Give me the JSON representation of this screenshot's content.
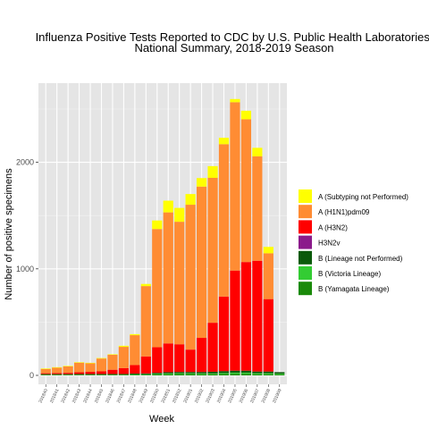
{
  "chart_data": {
    "type": "bar",
    "stacked": true,
    "title_lines": [
      "Influenza Positive Tests Reported to CDC by U.S. Public Health Laboratories,",
      "National Summary, 2018-2019 Season"
    ],
    "xlabel": "Week",
    "ylabel": "Number of positive specimens",
    "ylim": [
      0,
      2600
    ],
    "yticks": [
      0,
      1000,
      2000
    ],
    "grid": true,
    "legend_position": "right",
    "categories": [
      "201840",
      "201841",
      "201842",
      "201843",
      "201844",
      "201845",
      "201846",
      "201847",
      "201848",
      "201849",
      "201850",
      "201851",
      "201852",
      "201901",
      "201902",
      "201903",
      "201904",
      "201905",
      "201906",
      "201907",
      "201908",
      "201909"
    ],
    "series": [
      {
        "name": "B (Yamagata Lineage)",
        "color": "#1a8a0a",
        "values": [
          4,
          4,
          4,
          4,
          4,
          4,
          4,
          4,
          5,
          6,
          8,
          10,
          12,
          12,
          10,
          10,
          12,
          14,
          14,
          10,
          10,
          8
        ]
      },
      {
        "name": "B (Victoria Lineage)",
        "color": "#33cc33",
        "values": [
          3,
          3,
          3,
          3,
          3,
          3,
          3,
          3,
          4,
          4,
          6,
          8,
          8,
          8,
          8,
          8,
          10,
          12,
          12,
          10,
          10,
          8
        ]
      },
      {
        "name": "B (Lineage not Performed)",
        "color": "#0b5a0b",
        "values": [
          5,
          5,
          5,
          6,
          6,
          6,
          6,
          6,
          8,
          8,
          10,
          12,
          12,
          12,
          14,
          16,
          18,
          18,
          18,
          16,
          16,
          14
        ]
      },
      {
        "name": "H3N2v",
        "color": "#8b1a8b",
        "values": [
          0,
          0,
          0,
          0,
          0,
          0,
          0,
          0,
          0,
          0,
          0,
          0,
          0,
          0,
          0,
          0,
          0,
          0,
          0,
          0,
          0,
          0
        ]
      },
      {
        "name": "A (H3N2)",
        "color": "#ff0000",
        "values": [
          8,
          10,
          12,
          16,
          20,
          25,
          40,
          55,
          80,
          160,
          240,
          270,
          260,
          210,
          320,
          460,
          700,
          940,
          1020,
          1040,
          680,
          0
        ]
      },
      {
        "name": "A (H1N1)pdm09",
        "color": "#ff8c33",
        "values": [
          40,
          50,
          60,
          90,
          80,
          120,
          140,
          200,
          280,
          660,
          1110,
          1230,
          1150,
          1360,
          1420,
          1360,
          1430,
          1580,
          1340,
          980,
          430,
          0
        ]
      },
      {
        "name": "A (Subtyping not Performed)",
        "color": "#ffff00",
        "values": [
          5,
          5,
          5,
          5,
          5,
          5,
          5,
          10,
          10,
          20,
          80,
          110,
          130,
          100,
          80,
          110,
          60,
          30,
          80,
          80,
          60,
          0
        ]
      }
    ],
    "legend_order": [
      "A (Subtyping not Performed)",
      "A (H1N1)pdm09",
      "A (H3N2)",
      "H3N2v",
      "B (Lineage not Performed)",
      "B (Victoria Lineage)",
      "B (Yamagata Lineage)"
    ]
  }
}
